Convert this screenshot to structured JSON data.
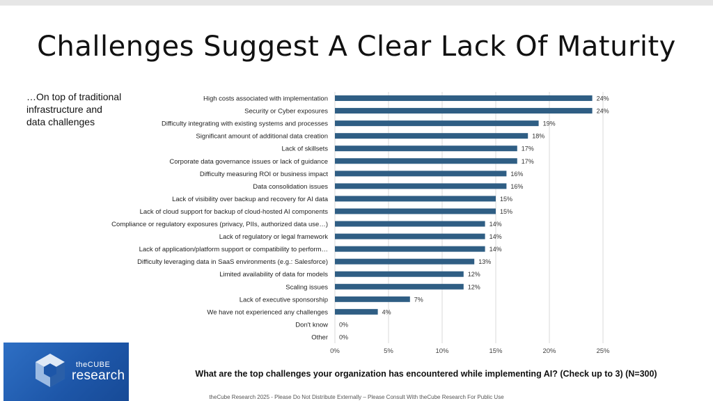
{
  "title": "Challenges Suggest A Clear Lack Of Maturity",
  "side_note": "…On top of traditional infrastructure and data challenges",
  "question": "What are the top challenges your organization has encountered while implementing AI? (Check up to 3) (N=300)",
  "footer": "theCube Research 2025 - Please Do Not Distribute Externally – Please Consult With theCube Research For Public Use",
  "logo": {
    "small_text": "theCUBE",
    "big_text": "research"
  },
  "colors": {
    "bar": "#2f5e84",
    "grid": "#d9d9d9"
  },
  "chart_data": {
    "type": "bar",
    "orientation": "horizontal",
    "categories": [
      "High costs associated with implementation",
      "Security or Cyber exposures",
      "Difficulty integrating with existing systems and processes",
      "Significant amount of additional data creation",
      "Lack of skillsets",
      "Corporate data governance issues or lack of guidance",
      "Difficulty measuring ROI or business impact",
      "Data consolidation issues",
      "Lack of visibility over backup and recovery for AI data",
      "Lack of cloud support for backup of cloud-hosted AI components",
      "Compliance or regulatory exposures (privacy, PIIs, authorized data use…)",
      "Lack of regulatory or legal framework",
      "Lack of application/platform support or compatibility to perform…",
      "Difficulty leveraging data in SaaS environments (e.g.: Salesforce)",
      "Limited availability of data for models",
      "Scaling issues",
      "Lack of executive sponsorship",
      "We have not experienced any challenges",
      "Don't know",
      "Other"
    ],
    "values": [
      24,
      24,
      19,
      18,
      17,
      17,
      16,
      16,
      15,
      15,
      14,
      14,
      14,
      13,
      12,
      12,
      7,
      4,
      0,
      0
    ],
    "value_labels": [
      "24%",
      "24%",
      "19%",
      "18%",
      "17%",
      "17%",
      "16%",
      "16%",
      "15%",
      "15%",
      "14%",
      "14%",
      "14%",
      "13%",
      "12%",
      "12%",
      "7%",
      "4%",
      "0%",
      "0%"
    ],
    "xlim": [
      0,
      25
    ],
    "xticks": [
      0,
      5,
      10,
      15,
      20,
      25
    ],
    "xtick_labels": [
      "0%",
      "5%",
      "10%",
      "15%",
      "20%",
      "25%"
    ],
    "grid": true
  }
}
